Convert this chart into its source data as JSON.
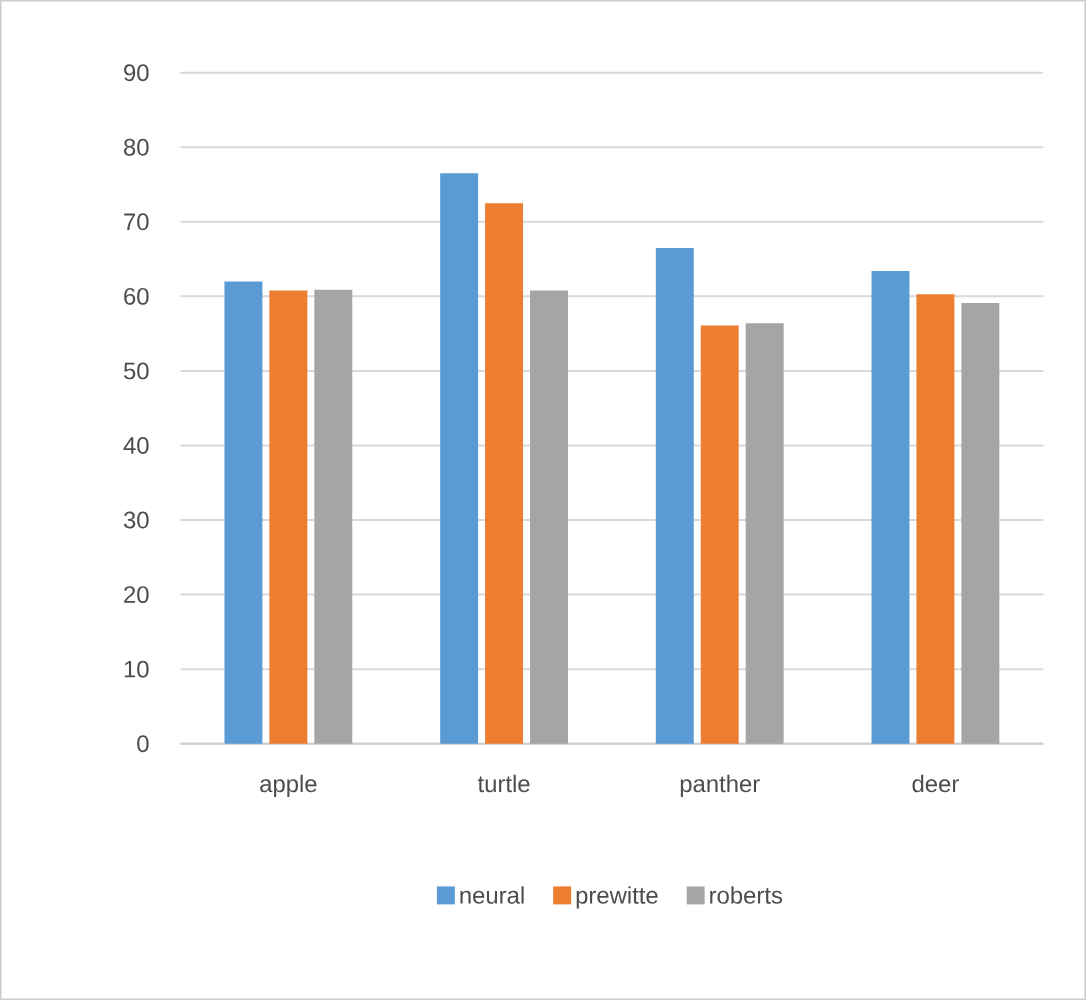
{
  "chart_data": {
    "type": "bar",
    "categories": [
      "apple",
      "turtle",
      "panther",
      "deer"
    ],
    "series": [
      {
        "name": "neural",
        "color": "#5b9bd5",
        "values": [
          62.0,
          76.5,
          66.5,
          63.4
        ]
      },
      {
        "name": "prewitte",
        "color": "#ed7d31",
        "values": [
          60.8,
          72.5,
          56.1,
          60.3
        ]
      },
      {
        "name": "roberts",
        "color": "#a5a5a5",
        "values": [
          60.9,
          60.8,
          56.4,
          59.1
        ]
      }
    ],
    "ylim": [
      0,
      90
    ],
    "yticks": [
      0,
      10,
      20,
      30,
      40,
      50,
      60,
      70,
      80,
      90
    ],
    "grid": "y",
    "legend": "bottom"
  }
}
